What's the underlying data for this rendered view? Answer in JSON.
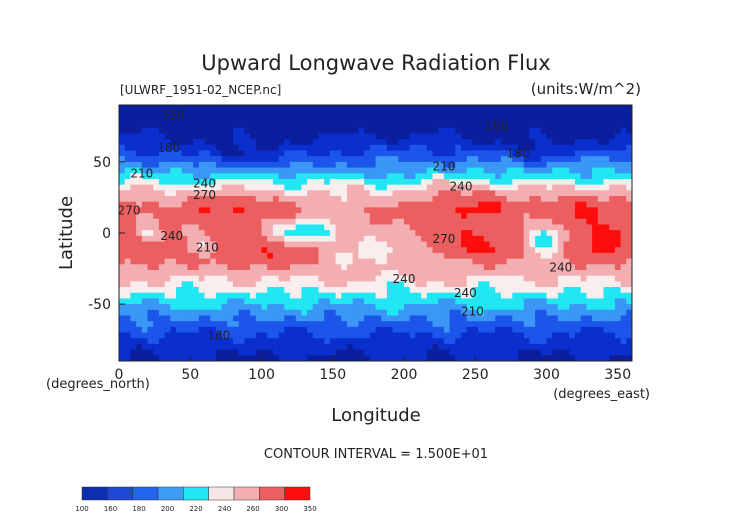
{
  "chart_data": {
    "type": "heatmap",
    "title": "Upward Longwave Radiation Flux",
    "subtitle_left": "[ULWRF_1951-02_NCEP.nc]",
    "subtitle_right": "(units:W/m^2)",
    "xlabel": "Longitude",
    "ylabel": "Latitude",
    "x_unit_label": "(degrees_east)",
    "y_unit_label": "(degrees_north)",
    "xlim": [
      0,
      360
    ],
    "ylim": [
      -90,
      90
    ],
    "x_ticks": [
      0,
      50,
      100,
      150,
      200,
      250,
      300,
      350
    ],
    "y_ticks": [
      -50,
      0,
      50
    ],
    "contour_interval_text": "CONTOUR INTERVAL = 1.500E+01",
    "contour_labels": [
      {
        "text": "150",
        "lon": 38,
        "lat": 80
      },
      {
        "text": "150",
        "lon": 265,
        "lat": 72
      },
      {
        "text": "180",
        "lon": 35,
        "lat": 57
      },
      {
        "text": "180",
        "lon": 280,
        "lat": 53
      },
      {
        "text": "210",
        "lon": 16,
        "lat": 39
      },
      {
        "text": "210",
        "lon": 228,
        "lat": 44
      },
      {
        "text": "240",
        "lon": 60,
        "lat": 32
      },
      {
        "text": "240",
        "lon": 240,
        "lat": 30
      },
      {
        "text": "270",
        "lon": 60,
        "lat": 24
      },
      {
        "text": "270",
        "lon": 7,
        "lat": 13
      },
      {
        "text": "240",
        "lon": 37,
        "lat": -5
      },
      {
        "text": "210",
        "lon": 62,
        "lat": -13
      },
      {
        "text": "270",
        "lon": 228,
        "lat": -7
      },
      {
        "text": "240",
        "lon": 200,
        "lat": -35
      },
      {
        "text": "240",
        "lon": 243,
        "lat": -45
      },
      {
        "text": "210",
        "lon": 248,
        "lat": -58
      },
      {
        "text": "240",
        "lon": 310,
        "lat": -27
      },
      {
        "text": "180",
        "lon": 70,
        "lat": -75
      }
    ],
    "colorbar": {
      "levels": [
        100,
        160,
        180,
        200,
        220,
        240,
        260,
        300,
        350
      ],
      "colors": [
        "#0b2fae",
        "#1f47d6",
        "#2266ee",
        "#3f9cf5",
        "#22e6f2",
        "#f7e6e6",
        "#f2aeb0",
        "#ec5f61",
        "#ff0d0d"
      ]
    },
    "field": {
      "description_of_levels": "W/m^2",
      "color_stops": [
        {
          "value": 120,
          "color": "#0b1f9e"
        },
        {
          "value": 150,
          "color": "#0a2fce"
        },
        {
          "value": 170,
          "color": "#1c55ea"
        },
        {
          "value": 190,
          "color": "#3a97f5"
        },
        {
          "value": 210,
          "color": "#22e6f2"
        },
        {
          "value": 228,
          "color": "#f9eded"
        },
        {
          "value": 245,
          "color": "#f2aeb0"
        },
        {
          "value": 268,
          "color": "#ec5f61"
        },
        {
          "value": 300,
          "color": "#ff0d0d"
        }
      ]
    }
  }
}
